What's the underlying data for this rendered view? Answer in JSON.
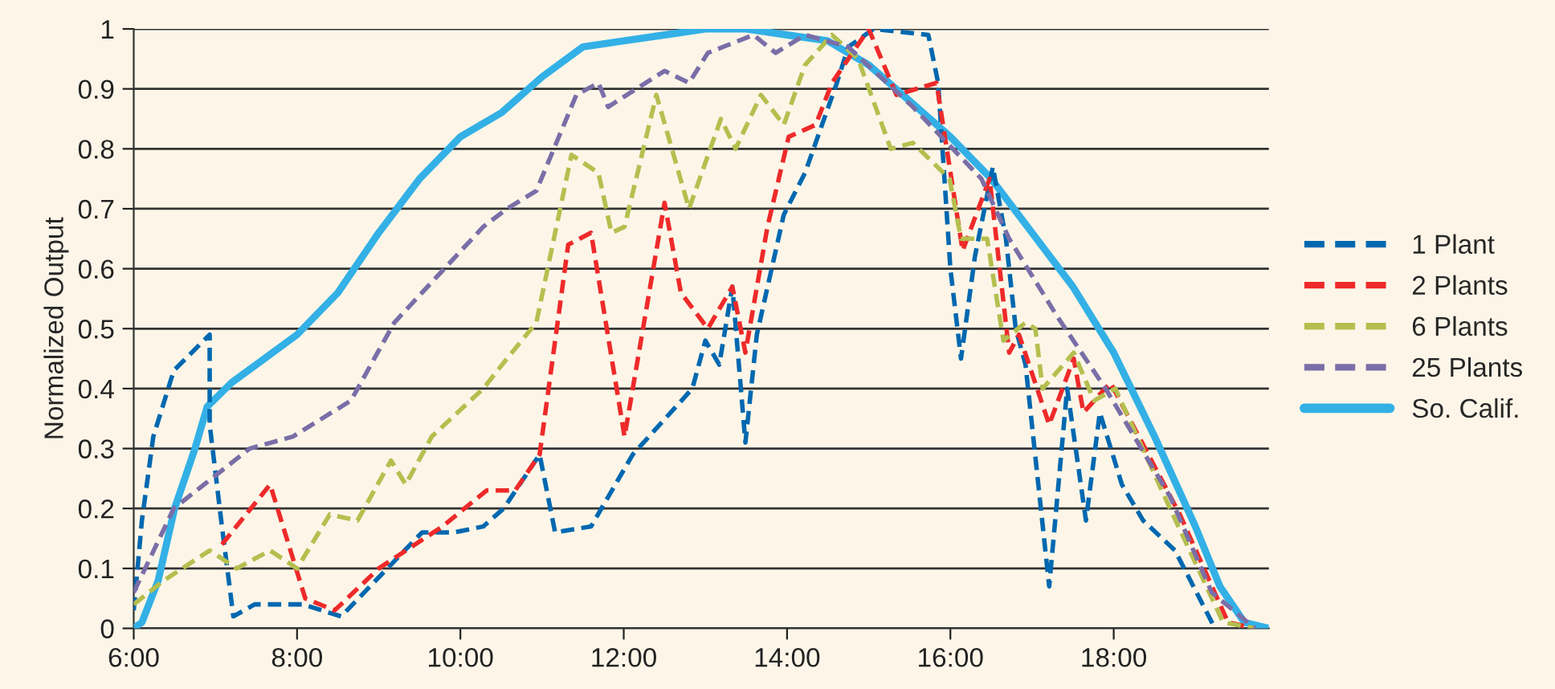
{
  "chart_data": {
    "type": "line",
    "ylabel": "Normalized Output",
    "xlim": [
      6,
      19.9
    ],
    "ylim": [
      0,
      1
    ],
    "xticks": [
      {
        "value": 6,
        "label": "6:00"
      },
      {
        "value": 8,
        "label": "8:00"
      },
      {
        "value": 10,
        "label": "10:00"
      },
      {
        "value": 12,
        "label": "12:00"
      },
      {
        "value": 14,
        "label": "14:00"
      },
      {
        "value": 16,
        "label": "16:00"
      },
      {
        "value": 18,
        "label": "18:00"
      }
    ],
    "yticks": [
      0,
      0.1,
      0.2,
      0.3,
      0.4,
      0.5,
      0.6,
      0.7,
      0.8,
      0.9,
      1
    ],
    "grid": "y",
    "legend": "right",
    "marker": "none",
    "series": [
      {
        "name": "1 Plant",
        "color": "#0068b0",
        "line_style": "dashed",
        "x": [
          6.0,
          6.1,
          6.24,
          6.49,
          6.93,
          6.93,
          7.08,
          7.22,
          7.48,
          8.07,
          8.54,
          9.53,
          9.92,
          10.28,
          10.53,
          10.97,
          11.16,
          11.6,
          12.11,
          12.84,
          13.0,
          13.17,
          13.33,
          13.49,
          13.63,
          13.96,
          14.22,
          14.61,
          14.75,
          15.06,
          15.73,
          15.85,
          16.0,
          16.13,
          16.3,
          16.52,
          16.68,
          16.8,
          16.92,
          17.21,
          17.43,
          17.66,
          17.83,
          18.1,
          18.36,
          18.75,
          19.24
        ],
        "values": [
          0.03,
          0.18,
          0.32,
          0.43,
          0.49,
          0.34,
          0.17,
          0.02,
          0.04,
          0.04,
          0.02,
          0.16,
          0.16,
          0.17,
          0.2,
          0.29,
          0.16,
          0.17,
          0.29,
          0.4,
          0.48,
          0.44,
          0.57,
          0.31,
          0.49,
          0.69,
          0.76,
          0.91,
          0.97,
          1.0,
          0.99,
          0.91,
          0.6,
          0.45,
          0.62,
          0.77,
          0.65,
          0.5,
          0.44,
          0.07,
          0.4,
          0.18,
          0.36,
          0.24,
          0.18,
          0.13,
          0.0
        ]
      },
      {
        "name": "2 Plants",
        "color": "#ee2a2a",
        "line_style": "dashed",
        "x": [
          7.08,
          7.67,
          8.1,
          8.46,
          9.0,
          9.78,
          10.32,
          10.67,
          10.97,
          11.32,
          11.6,
          12.01,
          12.5,
          12.7,
          13.03,
          13.33,
          13.49,
          13.76,
          14.02,
          14.35,
          14.55,
          15.0,
          15.34,
          15.83,
          16.15,
          16.48,
          16.72,
          16.84,
          17.21,
          17.51,
          17.63,
          17.96,
          18.81,
          19.4,
          19.73
        ],
        "values": [
          0.14,
          0.24,
          0.05,
          0.03,
          0.1,
          0.17,
          0.23,
          0.23,
          0.29,
          0.64,
          0.66,
          0.32,
          0.71,
          0.56,
          0.5,
          0.57,
          0.46,
          0.67,
          0.82,
          0.84,
          0.91,
          1.0,
          0.89,
          0.91,
          0.63,
          0.75,
          0.46,
          0.49,
          0.34,
          0.45,
          0.36,
          0.41,
          0.19,
          0.01,
          0.0
        ]
      },
      {
        "name": "6 Plants",
        "color": "#b5bf4f",
        "line_style": "dashed",
        "x": [
          6.0,
          6.37,
          6.93,
          7.26,
          7.67,
          8.0,
          8.4,
          8.74,
          9.15,
          9.33,
          9.65,
          10.28,
          10.57,
          10.93,
          11.36,
          11.69,
          11.85,
          12.01,
          12.4,
          12.8,
          13.19,
          13.37,
          13.68,
          13.96,
          14.22,
          14.55,
          14.87,
          15.27,
          15.54,
          15.99,
          16.13,
          16.45,
          16.65,
          16.92,
          17.04,
          17.13,
          17.51,
          17.76,
          18.02,
          18.69,
          19.34,
          19.73
        ],
        "values": [
          0.04,
          0.08,
          0.13,
          0.1,
          0.13,
          0.1,
          0.19,
          0.18,
          0.28,
          0.24,
          0.32,
          0.4,
          0.45,
          0.51,
          0.79,
          0.76,
          0.66,
          0.67,
          0.89,
          0.7,
          0.85,
          0.8,
          0.89,
          0.84,
          0.94,
          0.99,
          0.95,
          0.8,
          0.81,
          0.75,
          0.65,
          0.65,
          0.48,
          0.51,
          0.5,
          0.4,
          0.46,
          0.38,
          0.4,
          0.2,
          0.01,
          0.0
        ]
      },
      {
        "name": "25 Plants",
        "color": "#7a6ea8",
        "line_style": "dashed",
        "x": [
          6.0,
          6.49,
          7.42,
          7.95,
          8.66,
          9.19,
          10.28,
          10.57,
          10.93,
          11.42,
          11.69,
          11.81,
          12.5,
          12.8,
          13.03,
          13.59,
          13.86,
          14.22,
          14.75,
          15.54,
          16.38,
          16.72,
          17.31,
          17.9,
          18.69,
          19.2,
          19.73
        ],
        "values": [
          0.06,
          0.2,
          0.3,
          0.32,
          0.38,
          0.51,
          0.67,
          0.7,
          0.73,
          0.89,
          0.91,
          0.87,
          0.93,
          0.91,
          0.96,
          0.99,
          0.96,
          0.99,
          0.97,
          0.87,
          0.75,
          0.65,
          0.52,
          0.4,
          0.22,
          0.06,
          0.0
        ]
      },
      {
        "name": "So. Calif.",
        "color": "#33b0e6",
        "line_style": "solid",
        "x": [
          6.0,
          6.1,
          6.3,
          6.5,
          6.75,
          6.9,
          7.2,
          7.6,
          8.0,
          8.5,
          9.0,
          9.5,
          10.0,
          10.5,
          11.0,
          11.5,
          12.0,
          12.5,
          13.0,
          13.5,
          14.0,
          14.5,
          15.0,
          15.5,
          16.0,
          16.5,
          17.0,
          17.5,
          18.0,
          18.5,
          19.0,
          19.3,
          19.6,
          19.9
        ],
        "values": [
          0.0,
          0.01,
          0.08,
          0.2,
          0.3,
          0.37,
          0.41,
          0.45,
          0.49,
          0.56,
          0.66,
          0.75,
          0.82,
          0.86,
          0.92,
          0.97,
          0.98,
          0.99,
          1.0,
          1.0,
          0.99,
          0.98,
          0.94,
          0.88,
          0.82,
          0.75,
          0.66,
          0.57,
          0.46,
          0.32,
          0.17,
          0.07,
          0.01,
          0.0
        ]
      }
    ]
  }
}
